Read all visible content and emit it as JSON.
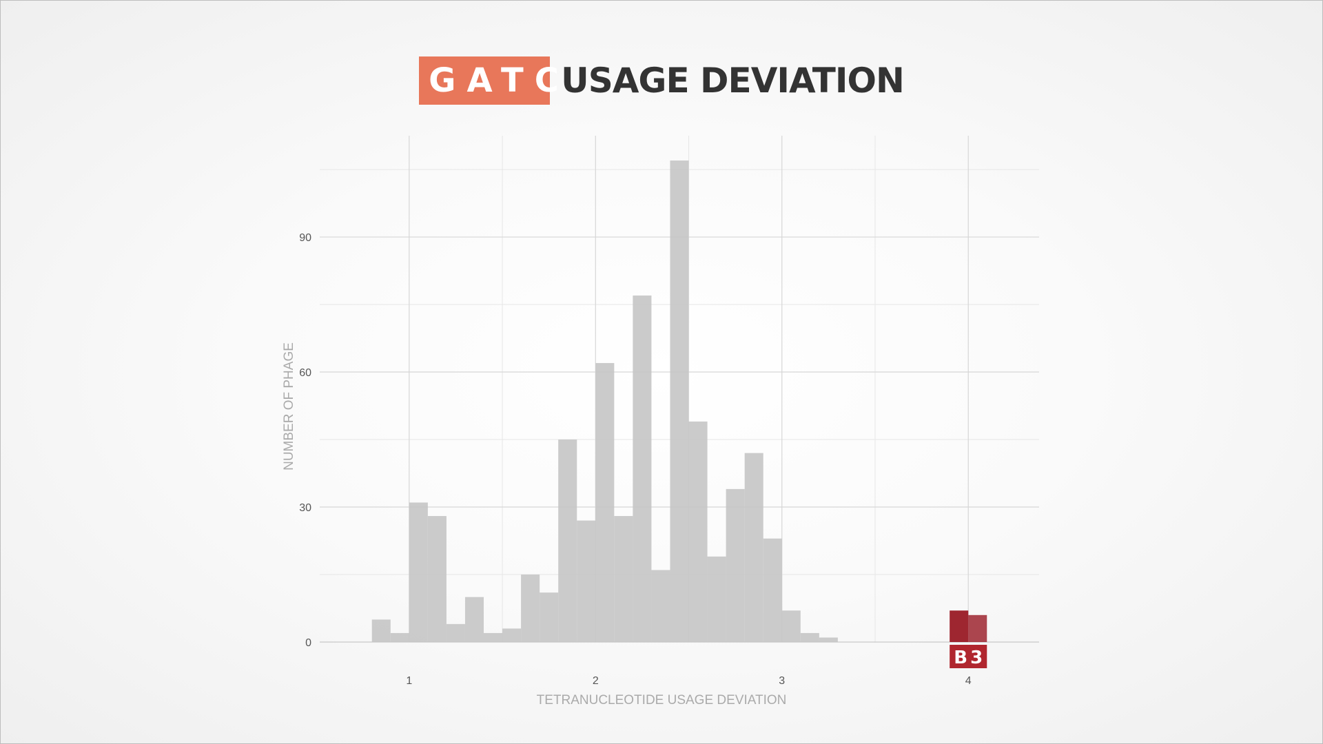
{
  "title": {
    "badge": "GATC",
    "text": "USAGE DEVIATION"
  },
  "highlight_label": "B3",
  "colors": {
    "bar": "#c4c4c4",
    "highlight": "#9e2630",
    "badge": "#e8775a",
    "label_box": "#b0262e"
  },
  "chart_data": {
    "type": "bar",
    "xlabel": "TETRANUCLEOTIDE USAGE DEVIATION",
    "ylabel": "NUMBER OF PHAGE",
    "xlim": [
      0.52,
      4.38
    ],
    "ylim": [
      0,
      107
    ],
    "xticks": [
      1,
      2,
      3,
      4
    ],
    "yticks": [
      0,
      30,
      60,
      90
    ],
    "bin_width": 0.1,
    "bins": [
      {
        "x0": 0.8,
        "count": 5
      },
      {
        "x0": 0.9,
        "count": 2
      },
      {
        "x0": 1.0,
        "count": 31
      },
      {
        "x0": 1.1,
        "count": 28
      },
      {
        "x0": 1.2,
        "count": 4
      },
      {
        "x0": 1.3,
        "count": 10
      },
      {
        "x0": 1.4,
        "count": 2
      },
      {
        "x0": 1.5,
        "count": 3
      },
      {
        "x0": 1.6,
        "count": 15
      },
      {
        "x0": 1.7,
        "count": 11
      },
      {
        "x0": 1.8,
        "count": 45
      },
      {
        "x0": 1.9,
        "count": 27
      },
      {
        "x0": 2.0,
        "count": 62
      },
      {
        "x0": 2.1,
        "count": 28
      },
      {
        "x0": 2.2,
        "count": 77
      },
      {
        "x0": 2.3,
        "count": 16
      },
      {
        "x0": 2.4,
        "count": 107
      },
      {
        "x0": 2.5,
        "count": 49
      },
      {
        "x0": 2.6,
        "count": 19
      },
      {
        "x0": 2.7,
        "count": 34
      },
      {
        "x0": 2.8,
        "count": 42
      },
      {
        "x0": 2.9,
        "count": 23
      },
      {
        "x0": 3.0,
        "count": 7
      },
      {
        "x0": 3.1,
        "count": 2
      },
      {
        "x0": 3.2,
        "count": 1
      }
    ],
    "highlight_bins": [
      {
        "x0": 3.9,
        "count": 7
      },
      {
        "x0": 4.0,
        "count": 6
      }
    ]
  }
}
